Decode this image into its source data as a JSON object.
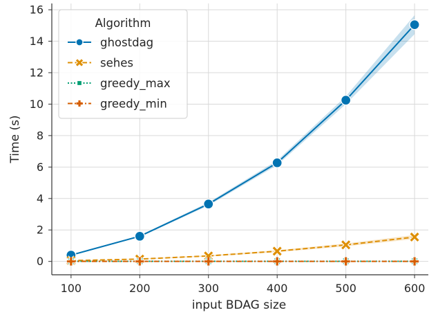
{
  "chart_data": {
    "type": "line",
    "xlabel": "input BDAG size",
    "ylabel": "Time (s)",
    "x": [
      100,
      200,
      300,
      400,
      500,
      600
    ],
    "xlim": [
      72,
      620
    ],
    "ylim": [
      -0.85,
      16.4
    ],
    "xticks": [
      100,
      200,
      300,
      400,
      500,
      600
    ],
    "yticks": [
      0,
      2,
      4,
      6,
      8,
      10,
      12,
      14,
      16
    ],
    "grid": true,
    "legend": {
      "title": "Algorithm",
      "placement": "top-left"
    },
    "series": [
      {
        "name": "ghostdag",
        "values": [
          0.4,
          1.6,
          3.65,
          6.27,
          10.25,
          15.05
        ],
        "ci_low": [
          0.36,
          1.55,
          3.55,
          6.12,
          10.0,
          14.45
        ],
        "ci_high": [
          0.44,
          1.65,
          3.75,
          6.42,
          10.5,
          15.65
        ],
        "color": "#0173b2",
        "dash": "solid",
        "marker": "circle"
      },
      {
        "name": "sehes",
        "values": [
          0.05,
          0.15,
          0.35,
          0.65,
          1.05,
          1.55
        ],
        "ci_low": [
          0.04,
          0.13,
          0.31,
          0.59,
          0.96,
          1.42
        ],
        "ci_high": [
          0.06,
          0.17,
          0.39,
          0.71,
          1.14,
          1.68
        ],
        "color": "#de8f05",
        "dash": "dashed",
        "marker": "x"
      },
      {
        "name": "greedy_max",
        "values": [
          0.01,
          0.01,
          0.01,
          0.01,
          0.01,
          0.01
        ],
        "color": "#029e73",
        "dash": "dotted",
        "marker": "square"
      },
      {
        "name": "greedy_min",
        "values": [
          0.0,
          0.0,
          0.0,
          0.0,
          0.0,
          0.0
        ],
        "color": "#d55e00",
        "dash": "dashdot",
        "marker": "plus"
      }
    ]
  }
}
